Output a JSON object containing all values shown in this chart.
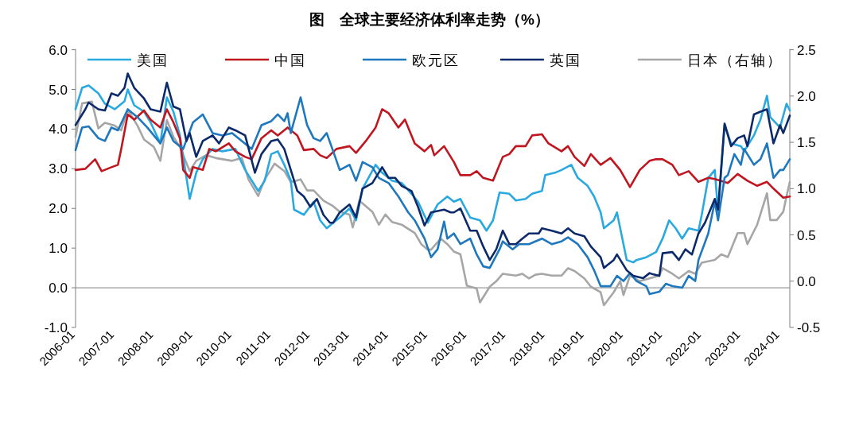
{
  "chart_data": {
    "type": "line",
    "title": "图　全球主要经济体利率走势（%）",
    "xlim": [
      "2006-01",
      "2024-04"
    ],
    "xticks": [
      "2006-01",
      "2007-01",
      "2008-01",
      "2009-01",
      "2010-01",
      "2011-01",
      "2012-01",
      "2013-01",
      "2014-01",
      "2015-01",
      "2016-01",
      "2017-01",
      "2018-01",
      "2019-01",
      "2020-01",
      "2021-01",
      "2022-01",
      "2023-01",
      "2024-01"
    ],
    "ylim": [
      -1,
      6
    ],
    "yticks": [
      {
        "value": -1,
        "label": "-1.0"
      },
      {
        "value": 0,
        "label": "0.0"
      },
      {
        "value": 1,
        "label": "1.0"
      },
      {
        "value": 2,
        "label": "2.0"
      },
      {
        "value": 3,
        "label": "3.0"
      },
      {
        "value": 4,
        "label": "4.0"
      },
      {
        "value": 5,
        "label": "5.0"
      },
      {
        "value": 6,
        "label": "6.0"
      }
    ],
    "y2lim": [
      -0.5,
      2.5
    ],
    "y2ticks": [
      -0.5,
      {
        "value": 0,
        "label": "0.0"
      },
      0.5,
      {
        "value": 1,
        "label": "1.0"
      },
      1.5,
      {
        "value": 2,
        "label": "2.0"
      },
      2.5
    ],
    "legend": "top",
    "marker": "none",
    "line_style": "solid",
    "series": [
      {
        "name": "美国",
        "color": "#2aa9e0",
        "x": [
          "2006-01",
          "2006-03",
          "2006-05",
          "2006-08",
          "2006-10",
          "2007-01",
          "2007-04",
          "2007-05",
          "2007-07",
          "2007-10",
          "2007-12",
          "2008-03",
          "2008-05",
          "2008-07",
          "2008-09",
          "2008-12",
          "2009-02",
          "2009-04",
          "2009-07",
          "2009-10",
          "2010-02",
          "2010-05",
          "2010-09",
          "2010-11",
          "2011-01",
          "2011-03",
          "2011-05",
          "2011-07",
          "2011-08",
          "2011-11",
          "2012-02",
          "2012-04",
          "2012-06",
          "2012-08",
          "2012-10",
          "2013-01",
          "2013-03",
          "2013-05",
          "2013-09",
          "2013-11",
          "2014-02",
          "2014-05",
          "2014-08",
          "2014-10",
          "2015-01",
          "2015-04",
          "2015-07",
          "2015-09",
          "2015-11",
          "2016-02",
          "2016-05",
          "2016-07",
          "2016-09",
          "2016-11",
          "2017-02",
          "2017-04",
          "2017-07",
          "2017-09",
          "2017-12",
          "2018-01",
          "2018-04",
          "2018-06",
          "2018-09",
          "2018-11",
          "2019-02",
          "2019-04",
          "2019-06",
          "2019-07",
          "2019-10",
          "2019-11",
          "2020-02",
          "2020-04",
          "2020-05",
          "2020-08",
          "2020-11",
          "2021-01",
          "2021-03",
          "2021-05",
          "2021-07",
          "2021-09",
          "2021-12",
          "2022-01",
          "2022-03",
          "2022-05",
          "2022-06",
          "2022-08",
          "2022-10",
          "2023-01",
          "2023-02",
          "2023-05",
          "2023-07",
          "2023-09",
          "2023-10",
          "2024-01",
          "2024-03",
          "2024-04"
        ],
        "values": [
          4.5,
          5.04,
          5.1,
          4.9,
          4.64,
          4.5,
          4.7,
          5.0,
          4.6,
          4.44,
          4.17,
          3.64,
          4.8,
          4.44,
          3.84,
          2.24,
          2.9,
          3.24,
          3.5,
          3.44,
          3.5,
          2.97,
          2.44,
          2.7,
          3.37,
          3.44,
          3.1,
          2.7,
          1.97,
          1.84,
          2.17,
          1.7,
          1.5,
          1.64,
          1.77,
          2.0,
          1.7,
          2.5,
          3.1,
          2.9,
          2.7,
          2.64,
          2.37,
          2.17,
          1.64,
          2.1,
          2.3,
          2.17,
          2.24,
          1.77,
          1.7,
          1.44,
          1.7,
          2.4,
          2.37,
          2.2,
          2.24,
          2.37,
          2.44,
          2.84,
          2.9,
          2.97,
          3.1,
          2.77,
          2.57,
          2.3,
          1.9,
          1.5,
          1.7,
          1.9,
          0.7,
          0.64,
          0.7,
          0.77,
          0.9,
          1.24,
          1.7,
          1.5,
          1.24,
          1.5,
          1.44,
          1.84,
          2.77,
          2.97,
          1.9,
          4.1,
          3.64,
          3.57,
          3.44,
          3.84,
          4.24,
          4.84,
          4.3,
          4.04,
          4.64,
          4.47
        ]
      },
      {
        "name": "中国",
        "color": "#c0161f",
        "x": [
          "2006-01",
          "2006-04",
          "2006-07",
          "2006-09",
          "2006-12",
          "2007-02",
          "2007-03",
          "2007-05",
          "2007-07",
          "2007-10",
          "2007-12",
          "2008-03",
          "2008-05",
          "2008-07",
          "2008-09",
          "2008-10",
          "2008-12",
          "2009-01",
          "2009-04",
          "2009-06",
          "2009-08",
          "2009-12",
          "2010-02",
          "2010-05",
          "2010-07",
          "2010-10",
          "2011-01",
          "2011-03",
          "2011-06",
          "2011-09",
          "2011-11",
          "2012-02",
          "2012-04",
          "2012-06",
          "2012-09",
          "2013-01",
          "2013-03",
          "2013-06",
          "2013-09",
          "2013-11",
          "2014-01",
          "2014-04",
          "2014-06",
          "2014-09",
          "2014-12",
          "2015-02",
          "2015-03",
          "2015-06",
          "2015-09",
          "2015-11",
          "2016-02",
          "2016-04",
          "2016-06",
          "2016-09",
          "2016-12",
          "2017-02",
          "2017-04",
          "2017-07",
          "2017-09",
          "2017-12",
          "2018-02",
          "2018-06",
          "2018-08",
          "2018-10",
          "2019-01",
          "2019-03",
          "2019-06",
          "2019-09",
          "2019-12",
          "2020-03",
          "2020-06",
          "2020-09",
          "2020-11",
          "2021-01",
          "2021-04",
          "2021-06",
          "2021-09",
          "2021-12",
          "2022-03",
          "2022-05",
          "2022-09",
          "2022-12",
          "2023-03",
          "2023-06",
          "2023-09",
          "2023-11",
          "2024-02",
          "2024-04"
        ],
        "values": [
          2.97,
          3.0,
          3.24,
          2.94,
          3.04,
          3.1,
          3.5,
          4.37,
          4.24,
          4.47,
          4.24,
          4.04,
          4.5,
          4.17,
          3.77,
          2.97,
          2.77,
          3.04,
          2.97,
          3.5,
          3.44,
          3.64,
          3.44,
          3.3,
          3.24,
          3.77,
          3.97,
          3.84,
          4.04,
          3.84,
          3.47,
          3.5,
          3.34,
          3.27,
          3.5,
          3.57,
          3.4,
          3.7,
          4.04,
          4.5,
          4.4,
          4.04,
          4.24,
          3.64,
          3.44,
          3.6,
          3.34,
          3.57,
          3.17,
          2.84,
          2.84,
          2.94,
          2.77,
          2.7,
          3.3,
          3.37,
          3.57,
          3.57,
          3.84,
          3.87,
          3.64,
          3.44,
          3.57,
          3.3,
          3.07,
          3.37,
          3.1,
          3.27,
          2.97,
          2.54,
          2.97,
          3.2,
          3.24,
          3.24,
          3.1,
          2.84,
          2.94,
          2.67,
          2.77,
          2.74,
          2.64,
          2.87,
          2.7,
          2.57,
          2.67,
          2.5,
          2.27,
          2.3
        ]
      },
      {
        "name": "欧元区",
        "color": "#1f78bd",
        "x": [
          "2006-01",
          "2006-03",
          "2006-05",
          "2006-08",
          "2006-10",
          "2006-12",
          "2007-02",
          "2007-05",
          "2007-08",
          "2007-11",
          "2008-01",
          "2008-03",
          "2008-05",
          "2008-07",
          "2008-10",
          "2009-01",
          "2009-04",
          "2009-07",
          "2009-10",
          "2010-01",
          "2010-04",
          "2010-07",
          "2010-10",
          "2011-01",
          "2011-03",
          "2011-05",
          "2011-06",
          "2011-07",
          "2011-10",
          "2011-12",
          "2012-02",
          "2012-04",
          "2012-06",
          "2012-08",
          "2012-10",
          "2013-01",
          "2013-03",
          "2013-05",
          "2013-08",
          "2013-10",
          "2014-01",
          "2014-04",
          "2014-07",
          "2014-09",
          "2014-12",
          "2015-02",
          "2015-04",
          "2015-06",
          "2015-07",
          "2015-09",
          "2015-11",
          "2016-02",
          "2016-04",
          "2016-06",
          "2016-08",
          "2016-11",
          "2016-12",
          "2017-03",
          "2017-05",
          "2017-08",
          "2017-10",
          "2017-12",
          "2018-03",
          "2018-06",
          "2018-08",
          "2018-11",
          "2019-02",
          "2019-04",
          "2019-06",
          "2019-09",
          "2019-11",
          "2020-01",
          "2020-03",
          "2020-05",
          "2020-08",
          "2020-09",
          "2020-12",
          "2021-02",
          "2021-04",
          "2021-07",
          "2021-09",
          "2021-11",
          "2021-12",
          "2022-03",
          "2022-05",
          "2022-06",
          "2022-08",
          "2022-09",
          "2022-11",
          "2023-01",
          "2023-02",
          "2023-05",
          "2023-07",
          "2023-09",
          "2023-11",
          "2024-01",
          "2024-02",
          "2024-04"
        ],
        "values": [
          3.47,
          4.04,
          4.07,
          3.77,
          3.7,
          4.04,
          3.97,
          4.5,
          4.3,
          4.04,
          3.84,
          3.64,
          4.04,
          3.7,
          3.5,
          4.17,
          4.37,
          3.9,
          3.84,
          3.9,
          3.7,
          3.5,
          4.1,
          4.2,
          4.37,
          4.2,
          4.4,
          3.9,
          4.8,
          4.1,
          3.77,
          3.7,
          3.9,
          3.44,
          2.97,
          3.1,
          2.7,
          3.17,
          3.04,
          2.77,
          2.64,
          2.3,
          1.9,
          1.7,
          1.24,
          0.77,
          0.97,
          1.67,
          1.24,
          1.37,
          1.1,
          1.24,
          0.84,
          0.54,
          0.5,
          0.97,
          1.17,
          0.97,
          1.1,
          1.1,
          1.17,
          1.24,
          1.1,
          1.17,
          1.27,
          1.1,
          0.77,
          0.44,
          0.04,
          0.04,
          0.3,
          0.17,
          0.37,
          0.17,
          0.04,
          -0.16,
          -0.1,
          0.1,
          0.04,
          0.0,
          0.3,
          0.17,
          0.7,
          1.37,
          2.17,
          1.7,
          2.77,
          2.84,
          3.37,
          3.1,
          3.5,
          3.1,
          3.24,
          3.64,
          2.77,
          2.97,
          2.97,
          3.24
        ]
      },
      {
        "name": "英国",
        "color": "#0c2a6a",
        "x": [
          "2006-01",
          "2006-04",
          "2006-05",
          "2006-08",
          "2006-10",
          "2006-12",
          "2007-02",
          "2007-04",
          "2007-05",
          "2007-07",
          "2007-10",
          "2007-12",
          "2008-03",
          "2008-05",
          "2008-07",
          "2008-09",
          "2008-11",
          "2008-12",
          "2009-02",
          "2009-04",
          "2009-07",
          "2009-09",
          "2009-12",
          "2010-02",
          "2010-05",
          "2010-08",
          "2010-10",
          "2011-01",
          "2011-03",
          "2011-05",
          "2011-07",
          "2011-09",
          "2011-11",
          "2012-01",
          "2012-03",
          "2012-05",
          "2012-07",
          "2012-08",
          "2012-10",
          "2013-01",
          "2013-03",
          "2013-05",
          "2013-08",
          "2013-11",
          "2014-01",
          "2014-03",
          "2014-05",
          "2014-08",
          "2014-10",
          "2014-12",
          "2015-02",
          "2015-06",
          "2015-08",
          "2015-09",
          "2015-11",
          "2016-02",
          "2016-04",
          "2016-06",
          "2016-08",
          "2016-10",
          "2016-12",
          "2017-02",
          "2017-04",
          "2017-06",
          "2017-08",
          "2017-11",
          "2017-12",
          "2018-03",
          "2018-06",
          "2018-08",
          "2018-10",
          "2019-01",
          "2019-03",
          "2019-06",
          "2019-07",
          "2019-10",
          "2019-11",
          "2020-02",
          "2020-04",
          "2020-07",
          "2020-09",
          "2020-10",
          "2020-12",
          "2021-01",
          "2021-04",
          "2021-06",
          "2021-08",
          "2021-10",
          "2021-12",
          "2022-02",
          "2022-05",
          "2022-06",
          "2022-08",
          "2022-10",
          "2022-12",
          "2023-02",
          "2023-03",
          "2023-05",
          "2023-07",
          "2023-09",
          "2023-11",
          "2024-01",
          "2024-02",
          "2024-04"
        ],
        "values": [
          4.1,
          4.5,
          4.67,
          4.5,
          4.47,
          4.9,
          4.84,
          5.04,
          5.4,
          5.04,
          4.77,
          4.5,
          4.44,
          5.17,
          4.57,
          4.5,
          3.7,
          3.9,
          3.3,
          3.7,
          3.84,
          3.64,
          4.04,
          3.97,
          3.84,
          2.9,
          3.37,
          3.7,
          3.74,
          3.5,
          2.97,
          2.44,
          2.3,
          2.04,
          2.24,
          1.84,
          1.64,
          1.64,
          1.9,
          2.1,
          1.77,
          2.5,
          2.64,
          3.04,
          2.77,
          2.77,
          2.57,
          2.44,
          2.04,
          1.57,
          1.9,
          1.97,
          1.9,
          1.9,
          2.0,
          1.44,
          1.44,
          1.04,
          0.7,
          0.97,
          1.44,
          1.1,
          1.1,
          1.24,
          1.37,
          1.37,
          1.5,
          1.44,
          1.37,
          1.5,
          1.37,
          1.3,
          1.04,
          0.77,
          0.5,
          0.7,
          0.84,
          0.44,
          0.3,
          0.24,
          0.37,
          0.34,
          0.3,
          0.87,
          0.9,
          0.7,
          0.97,
          0.84,
          1.37,
          1.64,
          2.24,
          1.97,
          4.14,
          3.57,
          3.77,
          3.84,
          3.57,
          4.37,
          4.44,
          4.5,
          3.64,
          4.1,
          3.9,
          4.34
        ]
      },
      {
        "name": "日本（右轴）",
        "color": "#a6a6a6",
        "axis": "y2",
        "x": [
          "2006-01",
          "2006-03",
          "2006-06",
          "2006-08",
          "2006-10",
          "2007-01",
          "2007-03",
          "2007-05",
          "2007-08",
          "2007-10",
          "2008-01",
          "2008-03",
          "2008-05",
          "2008-07",
          "2008-09",
          "2008-12",
          "2009-02",
          "2009-05",
          "2009-08",
          "2010-01",
          "2010-04",
          "2010-06",
          "2010-09",
          "2010-11",
          "2011-01",
          "2011-02",
          "2011-05",
          "2011-07",
          "2011-10",
          "2011-12",
          "2012-02",
          "2012-05",
          "2012-08",
          "2012-10",
          "2013-01",
          "2013-02",
          "2013-04",
          "2013-08",
          "2013-10",
          "2013-12",
          "2014-02",
          "2014-05",
          "2014-09",
          "2014-11",
          "2015-01",
          "2015-02",
          "2015-05",
          "2015-07",
          "2015-09",
          "2015-11",
          "2016-01",
          "2016-04",
          "2016-05",
          "2016-08",
          "2016-10",
          "2016-12",
          "2017-04",
          "2017-06",
          "2017-08",
          "2017-10",
          "2017-12",
          "2018-03",
          "2018-06",
          "2018-08",
          "2018-10",
          "2019-01",
          "2019-03",
          "2019-06",
          "2019-07",
          "2019-10",
          "2019-12",
          "2020-01",
          "2020-03",
          "2020-06",
          "2020-09",
          "2020-12",
          "2021-01",
          "2021-04",
          "2021-06",
          "2021-09",
          "2021-11",
          "2022-01",
          "2022-05",
          "2022-07",
          "2022-09",
          "2022-12",
          "2023-02",
          "2023-03",
          "2023-06",
          "2023-09",
          "2023-10",
          "2023-12",
          "2024-02",
          "2024-03",
          "2024-04"
        ],
        "values": [
          1.56,
          1.92,
          1.94,
          1.65,
          1.71,
          1.68,
          1.63,
          1.85,
          1.68,
          1.53,
          1.45,
          1.3,
          1.74,
          1.56,
          1.45,
          1.19,
          1.3,
          1.36,
          1.33,
          1.3,
          1.33,
          1.1,
          0.92,
          1.1,
          1.21,
          1.27,
          1.19,
          1.07,
          1.1,
          0.98,
          0.98,
          0.87,
          0.81,
          0.75,
          0.72,
          0.58,
          0.87,
          0.75,
          0.61,
          0.72,
          0.64,
          0.61,
          0.52,
          0.4,
          0.34,
          0.34,
          0.46,
          0.4,
          0.32,
          0.29,
          -0.05,
          -0.08,
          -0.23,
          -0.06,
          0.0,
          0.08,
          0.06,
          0.08,
          0.03,
          0.07,
          0.08,
          0.06,
          0.06,
          0.14,
          0.11,
          0.03,
          -0.06,
          -0.12,
          -0.26,
          -0.12,
          0.0,
          -0.15,
          0.06,
          0.0,
          0.03,
          0.06,
          0.14,
          0.08,
          0.03,
          0.11,
          0.08,
          0.2,
          0.23,
          0.29,
          0.26,
          0.52,
          0.52,
          0.4,
          0.61,
          0.95,
          0.66,
          0.66,
          0.75,
          0.92,
          1.07
        ]
      }
    ]
  }
}
